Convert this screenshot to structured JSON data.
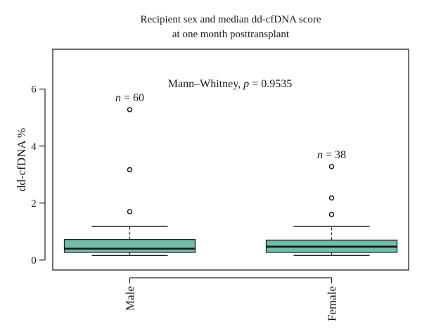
{
  "chart_data": {
    "type": "box",
    "title": "Recipient sex and median dd-cfDNA score",
    "subtitle": "at one month posttransplant",
    "xlabel": "",
    "ylabel": "dd-cfDNA %",
    "ylim": [
      -0.35,
      7.4
    ],
    "yticks": [
      0,
      2,
      4,
      6
    ],
    "grid": false,
    "box_color": "#6fbfa8",
    "categories": [
      "Male",
      "Female"
    ],
    "groups": [
      {
        "name": "Male",
        "n_label_prefix": "n",
        "n_label_value": " = 60",
        "n": 60,
        "whisker_low": 0.16,
        "q1": 0.27,
        "median": 0.4,
        "q3": 0.72,
        "whisker_high": 1.18,
        "outliers": [
          1.7,
          3.17,
          5.28
        ]
      },
      {
        "name": "Female",
        "n_label_prefix": "n",
        "n_label_value": " = 38",
        "n": 38,
        "whisker_low": 0.16,
        "q1": 0.27,
        "median": 0.47,
        "q3": 0.7,
        "whisker_high": 1.18,
        "outliers": [
          1.6,
          2.18,
          3.28
        ]
      }
    ],
    "annotation": {
      "test": "Mann–Whitney, ",
      "p_symbol": "p",
      "p_value": " = 0.9535"
    }
  }
}
